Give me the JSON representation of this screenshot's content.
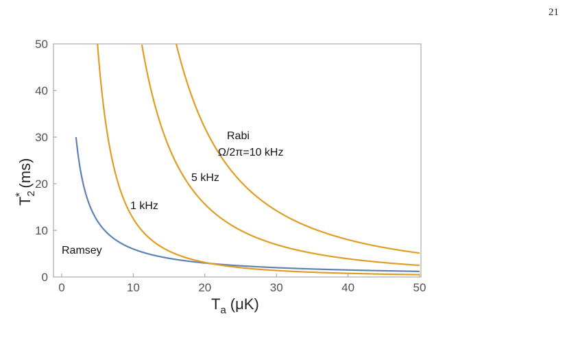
{
  "page": {
    "number": "21"
  },
  "chart_data": {
    "type": "line",
    "xlabel": "T",
    "xlabel_sub": "a",
    "xlabel_unit": "(μK)",
    "ylabel": "T",
    "ylabel_sup": "*",
    "ylabel_sub": "2",
    "ylabel_unit": "(ms)",
    "xlim": [
      0,
      50
    ],
    "ylim": [
      0,
      50
    ],
    "x_ticks": [
      0,
      10,
      20,
      30,
      40,
      50
    ],
    "y_ticks": [
      0,
      10,
      20,
      30,
      40,
      50
    ],
    "grid": false,
    "colors": {
      "ramsey": "#5e81b5",
      "rabi": "#e19c24",
      "frame": "#999999"
    },
    "series": [
      {
        "name": "Ramsey",
        "formula": "ramsey",
        "k": 60,
        "x_start": 2,
        "x_end": 50
      },
      {
        "name": "1 kHz",
        "formula": "rabi",
        "k": 1250,
        "x_start": 5,
        "x_end": 50
      },
      {
        "name": "5 kHz",
        "formula": "rabi",
        "k": 6250,
        "x_start": 11.2,
        "x_end": 50
      },
      {
        "name": "Ω/2π=10 kHz",
        "formula": "rabi",
        "k": 12800,
        "x_start": 16,
        "x_end": 50
      }
    ],
    "annotations": {
      "ramsey": "Ramsey",
      "khz1": "1 kHz",
      "khz5": "5 kHz",
      "rabi_title": "Rabi",
      "rabi_omega": "Ω/2π=10 kHz"
    }
  }
}
